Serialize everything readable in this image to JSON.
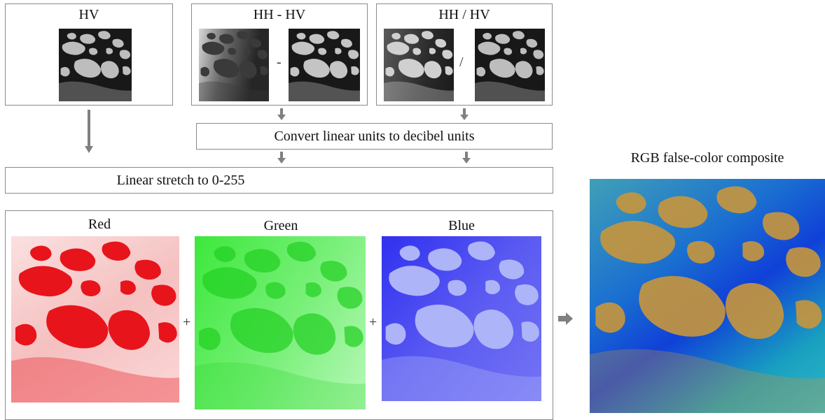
{
  "inputs": {
    "hv": {
      "title": "HV"
    },
    "diff": {
      "title": "HH - HV",
      "operator": "-"
    },
    "ratio": {
      "title": "HH / HV",
      "operator": "/"
    }
  },
  "steps": {
    "convert": "Convert linear units to decibel units",
    "stretch": "Linear stretch to 0-255"
  },
  "bands": {
    "red": "Red",
    "green": "Green",
    "blue": "Blue",
    "plus": "+"
  },
  "output": {
    "title": "RGB false-color composite"
  },
  "colors": {
    "border": "#8a8a8a",
    "arrow": "#808080",
    "red_band": "#e8141c",
    "green_band": "#22e622",
    "blue_band": "#2222ee",
    "composite_water": "#1aa8c8",
    "composite_ice": "#c8963c"
  }
}
